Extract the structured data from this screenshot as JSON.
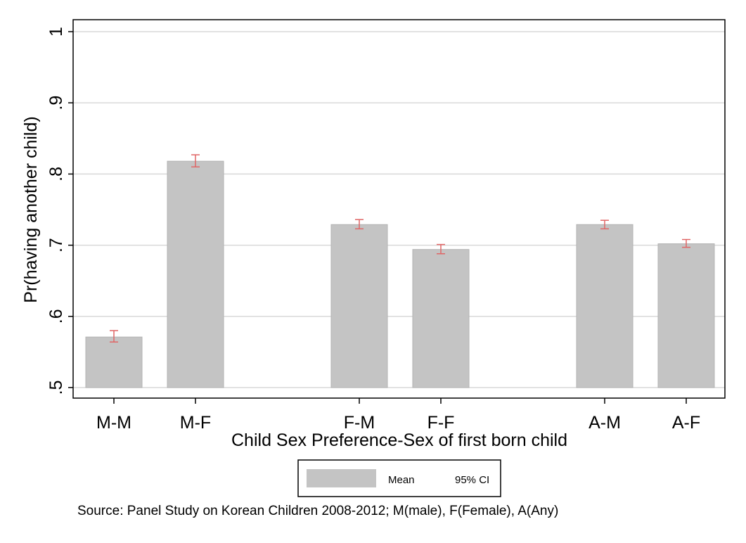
{
  "chart_data": {
    "type": "bar",
    "categories": [
      "M-M",
      "M-F",
      "F-M",
      "F-F",
      "A-M",
      "A-F"
    ],
    "groups": [
      [
        "M-M",
        "M-F"
      ],
      [
        "F-M",
        "F-F"
      ],
      [
        "A-M",
        "A-F"
      ]
    ],
    "series": [
      {
        "name": "Mean",
        "values": [
          0.571,
          0.818,
          0.729,
          0.694,
          0.729,
          0.702
        ],
        "color": "#c4c4c4"
      }
    ],
    "ci": {
      "name": "95% CI",
      "lower": [
        0.564,
        0.81,
        0.723,
        0.688,
        0.723,
        0.697
      ],
      "upper": [
        0.58,
        0.827,
        0.736,
        0.701,
        0.735,
        0.708
      ],
      "color": "#e06666"
    },
    "ylabel": "Pr(having another child)",
    "xlabel": "Child Sex Preference-Sex of first born child",
    "ylim": [
      0.5,
      1.0
    ],
    "yticks": [
      0.5,
      0.6,
      0.7,
      0.8,
      0.9,
      1.0
    ],
    "ytick_labels": [
      ".5",
      ".6",
      ".7",
      ".8",
      ".9",
      "1"
    ],
    "grid": true,
    "legend": {
      "position": "bottom",
      "entries": [
        "Mean",
        "95% CI"
      ]
    }
  },
  "source_note": "Source: Panel Study on Korean Children 2008-2012; M(male), F(Female), A(Any)"
}
